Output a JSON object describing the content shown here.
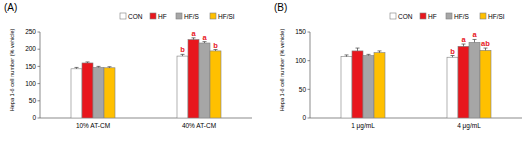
{
  "chart_data": [
    {
      "type": "bar",
      "title": "(A)",
      "y_label": "Hepa 1-6 cell number (% vehicle)",
      "categories": [
        "10% AT-CM",
        "40% AT-CM"
      ],
      "series": [
        {
          "name": "CON",
          "color": "#ffffff",
          "values": [
            143,
            180
          ],
          "errors": [
            4,
            5
          ]
        },
        {
          "name": "HF",
          "color": "#e8161d",
          "values": [
            160,
            228
          ],
          "errors": [
            3,
            5
          ]
        },
        {
          "name": "HF/S",
          "color": "#a6a6a6",
          "values": [
            147,
            218
          ],
          "errors": [
            3,
            4
          ]
        },
        {
          "name": "HF/SI",
          "color": "#ffc000",
          "values": [
            146,
            195
          ],
          "errors": [
            3,
            4
          ]
        }
      ],
      "annotations": [
        {
          "text": "b",
          "series": 0,
          "category": 1
        },
        {
          "text": "a",
          "series": 1,
          "category": 1
        },
        {
          "text": "a",
          "series": 2,
          "category": 1
        },
        {
          "text": "b",
          "series": 3,
          "category": 1
        }
      ],
      "ylim": [
        0,
        250
      ],
      "yticks": [
        0,
        50,
        100,
        150,
        200,
        250
      ],
      "grid": false,
      "legend": "top"
    },
    {
      "type": "bar",
      "title": "(B)",
      "y_label": "Hepa 1-6 cell number (% vehicle)",
      "categories": [
        "1 μg/mL",
        "4 μg/mL"
      ],
      "series": [
        {
          "name": "CON",
          "color": "#ffffff",
          "values": [
            107,
            106
          ],
          "errors": [
            3,
            3
          ]
        },
        {
          "name": "HF",
          "color": "#e8161d",
          "values": [
            117,
            125
          ],
          "errors": [
            5,
            4
          ]
        },
        {
          "name": "HF/S",
          "color": "#a6a6a6",
          "values": [
            109,
            132
          ],
          "errors": [
            2,
            5
          ]
        },
        {
          "name": "HF/SI",
          "color": "#ffc000",
          "values": [
            114,
            118
          ],
          "errors": [
            3,
            4
          ]
        }
      ],
      "annotations": [
        {
          "text": "b",
          "series": 0,
          "category": 1
        },
        {
          "text": "a",
          "series": 1,
          "category": 1
        },
        {
          "text": "a",
          "series": 2,
          "category": 1
        },
        {
          "text": "ab",
          "series": 3,
          "category": 1
        }
      ],
      "ylim": [
        0,
        150
      ],
      "yticks": [
        0,
        50,
        100,
        150
      ],
      "grid": false,
      "legend": "top"
    }
  ]
}
